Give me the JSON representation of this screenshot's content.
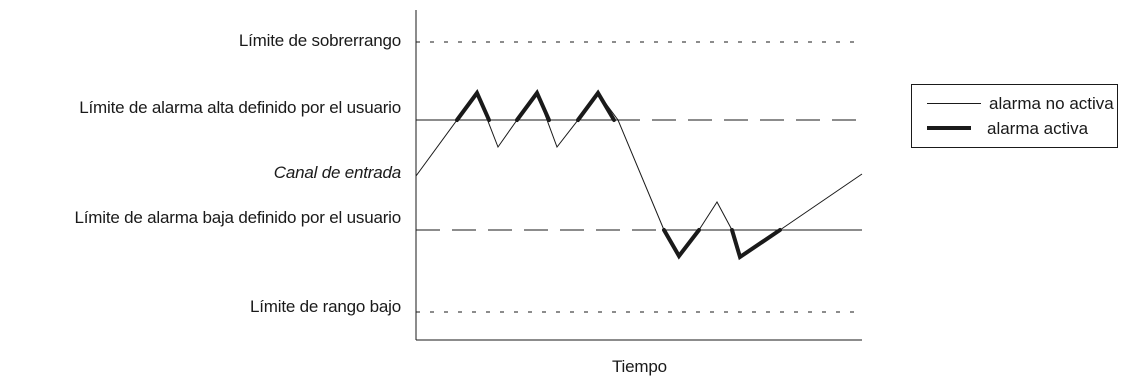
{
  "labels": {
    "overrange": "Límite de sobrerrango",
    "high_alarm": "Límite de alarma alta definido por el usuario",
    "input_channel": "Canal de entrada",
    "low_alarm": "Límite de alarma baja definido por el usuario",
    "low_range": "Límite de rango bajo",
    "x_axis": "Tiempo"
  },
  "legend": {
    "inactive": "alarma no activa",
    "active": "alarma activa"
  },
  "colors": {
    "line": "#1a1a1a",
    "background": "#ffffff"
  }
}
